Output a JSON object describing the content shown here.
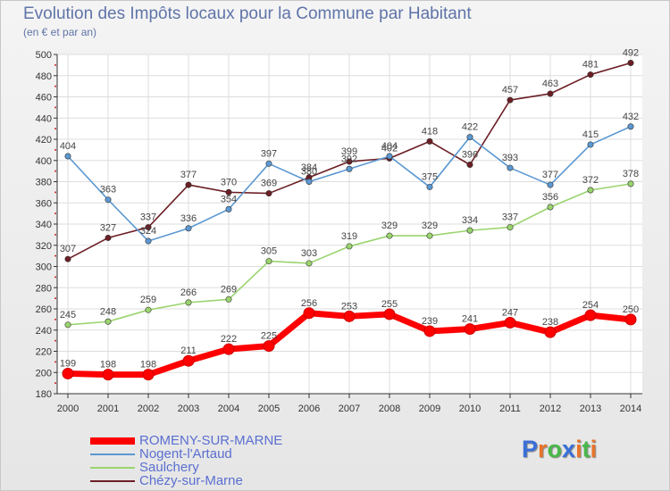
{
  "chart_data": {
    "type": "line",
    "title": "Evolution des Impôts locaux pour la Commune par Habitant",
    "subtitle": "(en € et par an)",
    "xlabel": "",
    "ylabel": "",
    "x": [
      2000,
      2001,
      2002,
      2003,
      2004,
      2005,
      2006,
      2007,
      2008,
      2009,
      2010,
      2011,
      2012,
      2013,
      2014
    ],
    "ylim": [
      180,
      500
    ],
    "yticks": [
      180,
      200,
      220,
      240,
      260,
      280,
      300,
      320,
      340,
      360,
      380,
      400,
      420,
      440,
      460,
      480,
      500
    ],
    "grid": true,
    "legend_position": "bottom-left",
    "series": [
      {
        "name": "Chézy-sur-Marne",
        "color": "#6b1e24",
        "values": [
          307,
          327,
          337,
          377,
          370,
          369,
          384,
          399,
          402,
          418,
          396,
          457,
          463,
          481,
          492
        ]
      },
      {
        "name": "Nogent-l'Artaud",
        "color": "#5b98d2",
        "values": [
          404,
          363,
          324,
          336,
          354,
          397,
          380,
          392,
          404,
          375,
          422,
          393,
          377,
          415,
          432
        ]
      },
      {
        "name": "Saulchery",
        "color": "#9ad46e",
        "values": [
          245,
          248,
          259,
          266,
          269,
          305,
          303,
          319,
          329,
          329,
          334,
          337,
          356,
          372,
          378
        ]
      },
      {
        "name": "ROMENY-SUR-MARNE",
        "color": "#ff0000",
        "values": [
          199,
          198,
          198,
          211,
          222,
          225,
          256,
          253,
          255,
          239,
          241,
          247,
          238,
          254,
          250
        ]
      }
    ]
  },
  "legend": {
    "items": [
      {
        "label": "ROMENY-SUR-MARNE",
        "color": "#ff0000"
      },
      {
        "label": "Nogent-l'Artaud",
        "color": "#5b98d2"
      },
      {
        "label": "Saulchery",
        "color": "#9ad46e"
      },
      {
        "label": "Chézy-sur-Marne",
        "color": "#6b1e24"
      }
    ]
  },
  "brand": {
    "text": "Proxiti",
    "letter_colors": [
      "#3a6fd8",
      "#e8742a",
      "#49b84a",
      "#3a6fd8",
      "#e8742a",
      "#49b84a",
      "#e8742a"
    ]
  }
}
